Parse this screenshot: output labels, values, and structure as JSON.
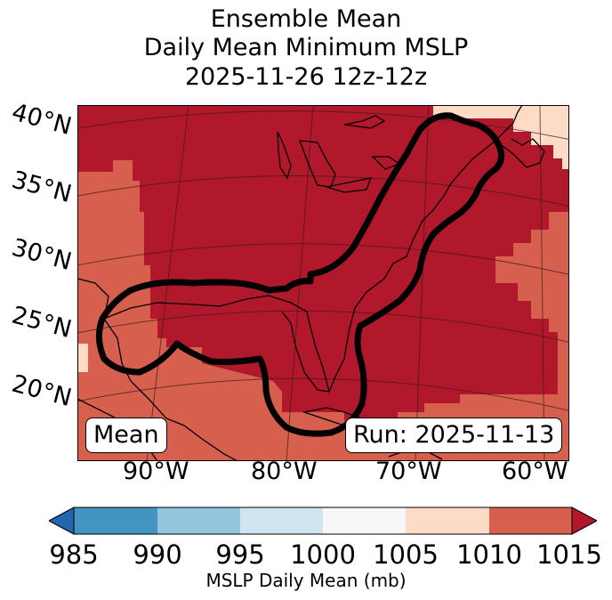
{
  "title": {
    "line1": "Ensemble Mean",
    "line2": "Daily Mean Minimum MSLP",
    "line3": "2025-11-26 12z-12z"
  },
  "axes": {
    "lat_labels": [
      "40°N",
      "35°N",
      "30°N",
      "25°N",
      "20°N"
    ],
    "lon_labels": [
      "90°W",
      "80°W",
      "70°W",
      "60°W"
    ]
  },
  "annotations": {
    "left_box": "Mean",
    "right_box": "Run: 2025-11-13"
  },
  "colorbar": {
    "label": "MSLP Daily Mean (mb)",
    "ticks": [
      "985",
      "990",
      "995",
      "1000",
      "1005",
      "1010",
      "1015"
    ],
    "colors": [
      "#2166ac",
      "#4393c3",
      "#92c5de",
      "#d1e5f0",
      "#f7f7f7",
      "#fddbc7",
      "#d6604d",
      "#b2182b"
    ]
  },
  "fill_colors": {
    "darkest": "#b2182b",
    "mid": "#d6604d",
    "light": "#fddbc7"
  }
}
